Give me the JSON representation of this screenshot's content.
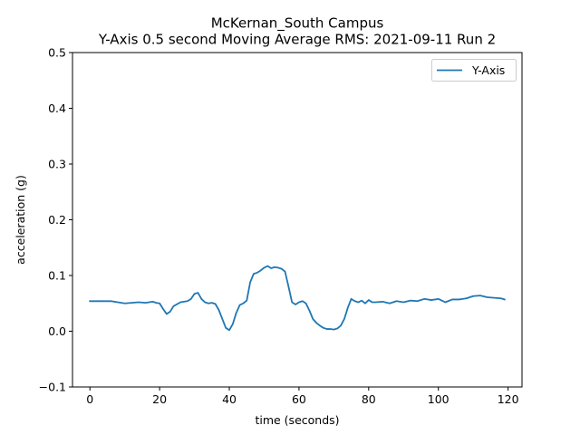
{
  "chart_data": {
    "type": "line",
    "title": "McKernan_South Campus",
    "subtitle": "Y-Axis 0.5 second Moving Average RMS: 2021-09-11 Run 2",
    "xlabel": "time (seconds)",
    "ylabel": "acceleration (g)",
    "xlim": [
      -5,
      124
    ],
    "ylim": [
      -0.1,
      0.5
    ],
    "xticks": [
      0,
      20,
      40,
      60,
      80,
      100,
      120
    ],
    "yticks": [
      -0.1,
      0.0,
      0.1,
      0.2,
      0.3,
      0.4,
      0.5
    ],
    "xtick_labels": [
      "0",
      "20",
      "40",
      "60",
      "80",
      "100",
      "120"
    ],
    "ytick_labels": [
      "−0.1",
      "0.0",
      "0.1",
      "0.2",
      "0.3",
      "0.4",
      "0.5"
    ],
    "grid": false,
    "legend_position": "top-right",
    "colors": {
      "series": "#1f77b4",
      "axes": "#000000"
    },
    "series": [
      {
        "name": "Y-Axis",
        "x": [
          0,
          2,
          4,
          6,
          8,
          10,
          12,
          14,
          16,
          18,
          19,
          20,
          21,
          22,
          23,
          24,
          26,
          28,
          29,
          30,
          31,
          32,
          33,
          34,
          35,
          36,
          37,
          38,
          39,
          40,
          41,
          42,
          43,
          44,
          45,
          46,
          47,
          48,
          49,
          50,
          51,
          52,
          53,
          54,
          55,
          56,
          57,
          58,
          59,
          60,
          61,
          62,
          63,
          64,
          65,
          66,
          67,
          68,
          69,
          70,
          71,
          72,
          73,
          74,
          75,
          76,
          77,
          78,
          79,
          80,
          81,
          82,
          84,
          86,
          88,
          90,
          92,
          94,
          96,
          98,
          100,
          102,
          104,
          106,
          108,
          110,
          112,
          114,
          116,
          118,
          119
        ],
        "y": [
          0.054,
          0.054,
          0.054,
          0.054,
          0.052,
          0.05,
          0.051,
          0.052,
          0.051,
          0.053,
          0.051,
          0.05,
          0.04,
          0.031,
          0.035,
          0.045,
          0.052,
          0.054,
          0.058,
          0.067,
          0.069,
          0.058,
          0.052,
          0.05,
          0.051,
          0.049,
          0.038,
          0.022,
          0.006,
          0.002,
          0.013,
          0.033,
          0.047,
          0.05,
          0.055,
          0.088,
          0.103,
          0.105,
          0.109,
          0.114,
          0.117,
          0.113,
          0.115,
          0.114,
          0.112,
          0.107,
          0.08,
          0.052,
          0.048,
          0.052,
          0.054,
          0.05,
          0.037,
          0.022,
          0.015,
          0.01,
          0.006,
          0.004,
          0.004,
          0.003,
          0.005,
          0.01,
          0.022,
          0.042,
          0.058,
          0.054,
          0.052,
          0.055,
          0.05,
          0.056,
          0.052,
          0.052,
          0.053,
          0.05,
          0.054,
          0.052,
          0.055,
          0.054,
          0.058,
          0.056,
          0.058,
          0.052,
          0.057,
          0.057,
          0.059,
          0.063,
          0.064,
          0.061,
          0.06,
          0.059,
          0.057
        ]
      }
    ]
  }
}
